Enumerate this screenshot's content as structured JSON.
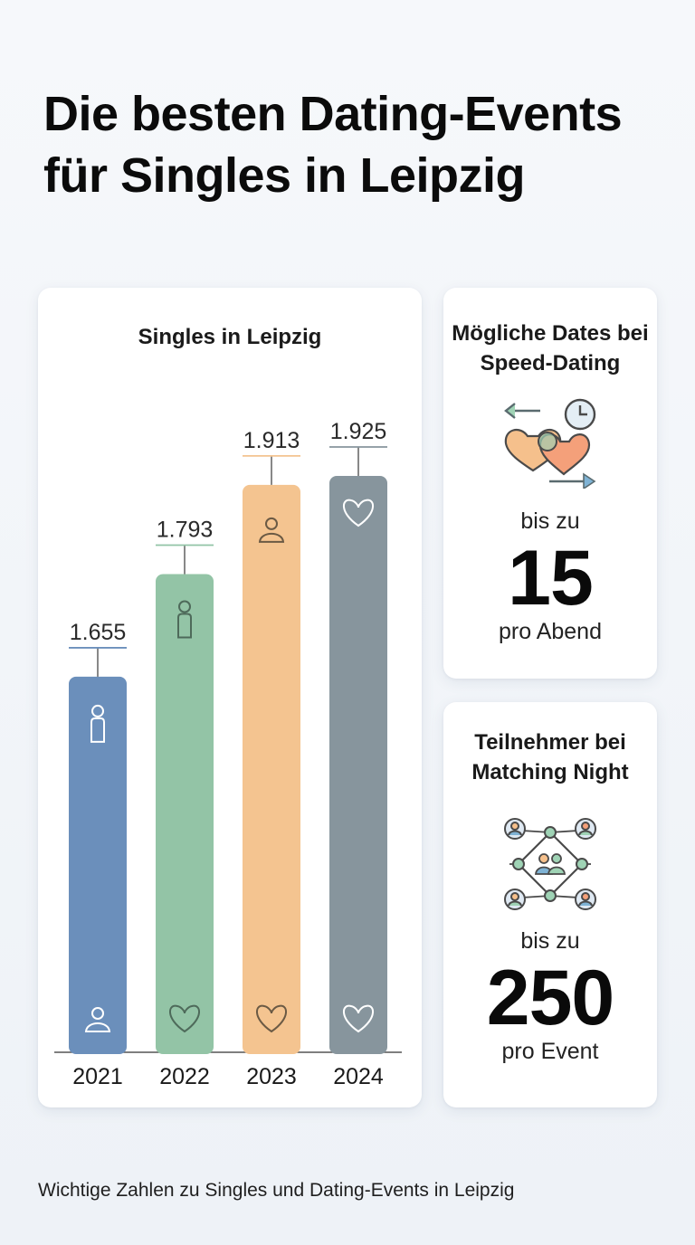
{
  "title": "Die besten Dating-Events für Singles in Leipzig",
  "chart_data": {
    "type": "bar",
    "title": "Singles in Leipzig",
    "categories": [
      "2021",
      "2022",
      "2023",
      "2024"
    ],
    "values": [
      1655,
      1793,
      1913,
      1925
    ],
    "value_labels": [
      "1.655",
      "1.793",
      "1.913",
      "1.925"
    ],
    "colors": [
      "#6b8fbb",
      "#93c4a6",
      "#f4c490",
      "#87959d"
    ],
    "xlabel": "",
    "ylabel": "",
    "grid": false,
    "legend": "none"
  },
  "speed_dating": {
    "title": "Mögliche Dates bei Speed-Dating",
    "prefix": "bis zu",
    "number": "15",
    "suffix": "pro Abend",
    "icon": "hearts-exchange-clock-icon"
  },
  "matching_night": {
    "title": "Teilnehmer bei Matching Night",
    "prefix": "bis zu",
    "number": "250",
    "suffix": "pro Event",
    "icon": "people-network-icon"
  },
  "footer": "Wichtige Zahlen zu Singles und Dating-Events in Leipzig"
}
